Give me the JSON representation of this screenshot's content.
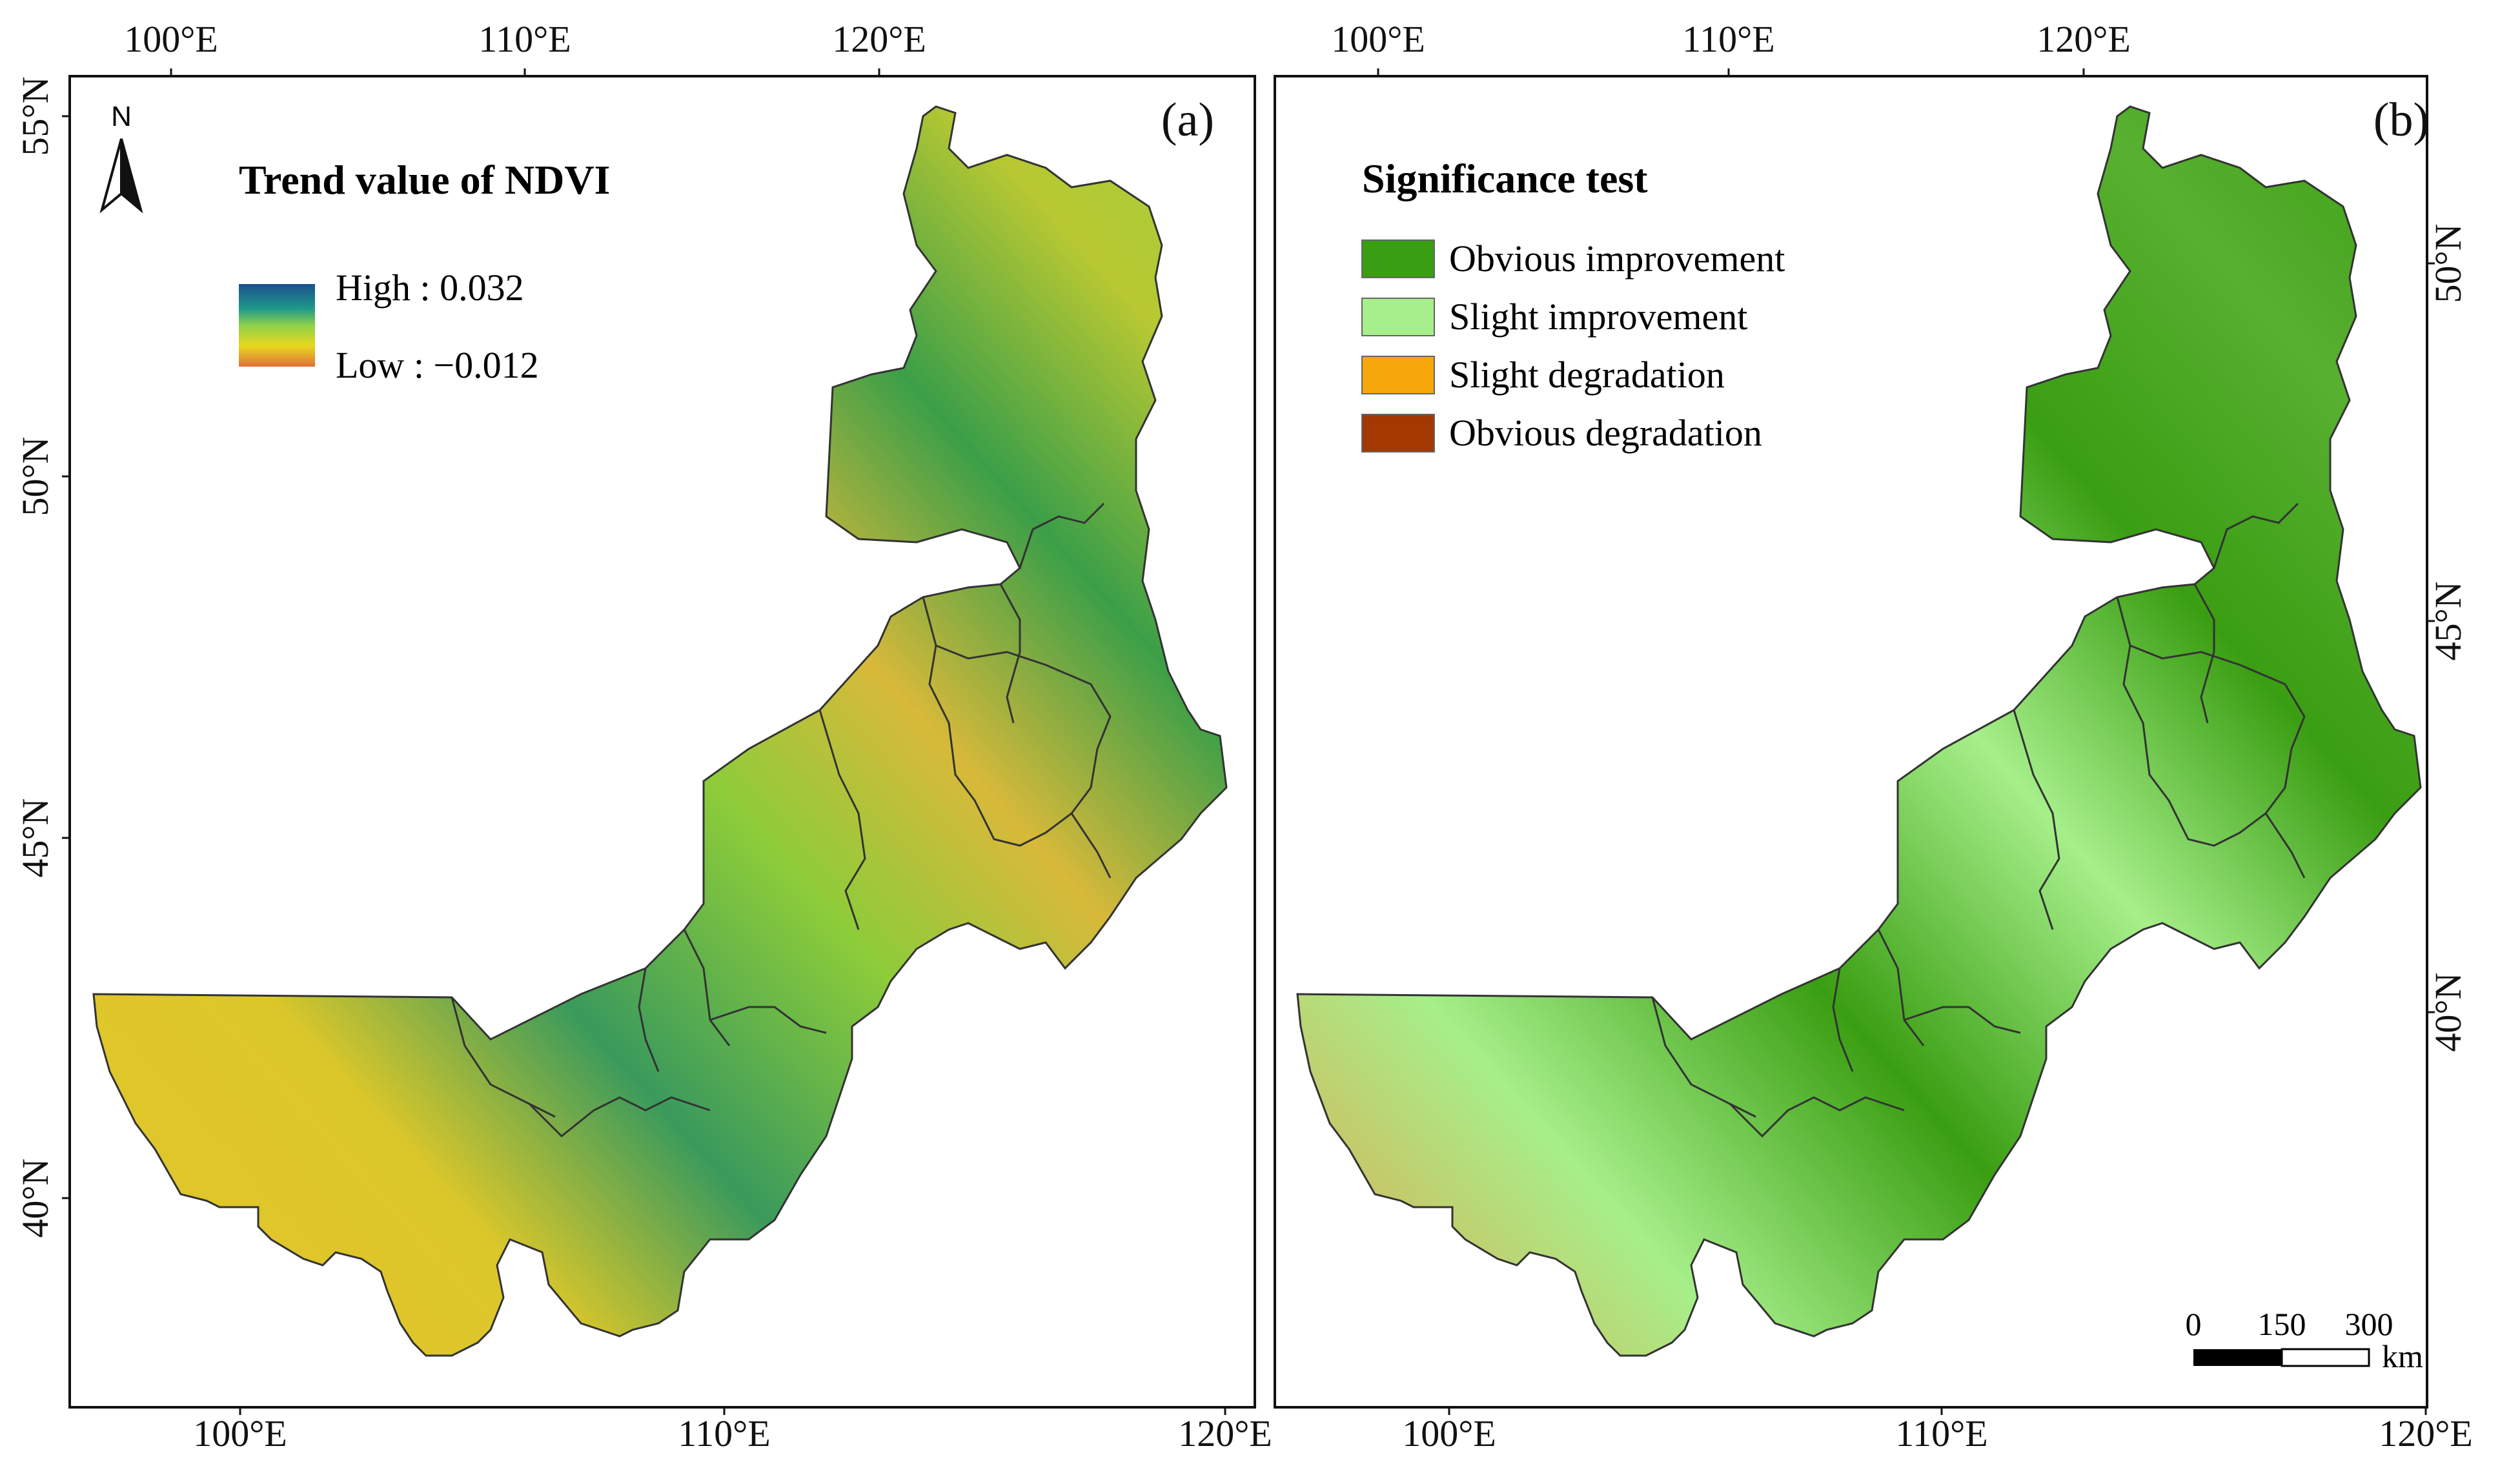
{
  "colors": {
    "high": "#1b4f8f",
    "mid_green": "#3aa845",
    "yellow": "#e8d81f",
    "low": "#e0703a",
    "obvious_improvement": "#3a9e12",
    "slight_improvement": "#a6ef8a",
    "slight_degradation": "#f7a70c",
    "obvious_degradation": "#a33800",
    "boundary": "#333333"
  },
  "panel_a": {
    "label": "(a)",
    "north_arrow": "N",
    "legend_title": "Trend value of NDVI",
    "legend_high": "High : 0.032",
    "legend_low": "Low : −0.012",
    "lon_ticks_top": [
      "100°E",
      "110°E",
      "120°E"
    ],
    "lon_ticks_bottom": [
      "100°E",
      "110°E",
      "120°E"
    ],
    "lat_ticks_left": [
      "55°N",
      "50°N",
      "45°N",
      "40°N"
    ]
  },
  "panel_b": {
    "label": "(b)",
    "legend_title": "Significance test",
    "legend_items": [
      {
        "label": "Obvious improvement",
        "color": "#3a9e12"
      },
      {
        "label": "Slight improvement",
        "color": "#a6ef8a"
      },
      {
        "label": "Slight degradation",
        "color": "#f7a70c"
      },
      {
        "label": "Obvious degradation",
        "color": "#a33800"
      }
    ],
    "lon_ticks_top": [
      "100°E",
      "110°E",
      "120°E"
    ],
    "lon_ticks_bottom": [
      "100°E",
      "110°E",
      "120°E"
    ],
    "lat_ticks_right": [
      "50°N",
      "45°N",
      "40°N"
    ],
    "scale_bar": {
      "labels": [
        "0",
        "150",
        "300"
      ],
      "unit": "km"
    }
  }
}
